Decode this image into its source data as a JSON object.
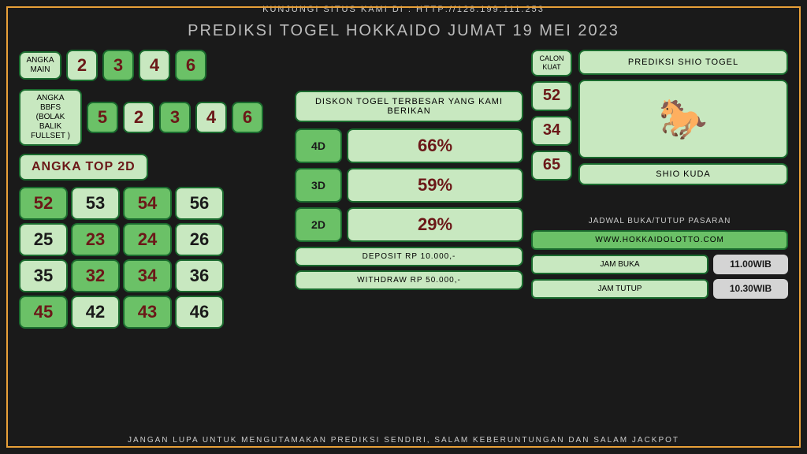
{
  "top_text": "KUNJUNGI SITUS KAMI DI : HTTP://128.199.111.253",
  "title": "PREDIKSI TOGEL HOKKAIDO JUMAT 19 MEI 2023",
  "bottom_text": "JANGAN LUPA UNTUK MENGUTAMAKAN PREDIKSI SENDIRI, SALAM KEBERUNTUNGAN DAN SALAM JACKPOT",
  "angka_main": {
    "label": "ANGKA MAIN",
    "nums": [
      "2",
      "3",
      "4",
      "6"
    ],
    "styles": [
      "l",
      "g",
      "l",
      "g"
    ]
  },
  "angka_bbfs": {
    "label": "ANGKA BBFS (BOLAK BALIK FULLSET )",
    "nums": [
      "5",
      "2",
      "3",
      "4",
      "6"
    ],
    "styles": [
      "g",
      "l",
      "g",
      "l",
      "g"
    ]
  },
  "top2d": {
    "title": "ANGKA TOP 2D",
    "cells": [
      {
        "v": "52",
        "s": "g"
      },
      {
        "v": "53",
        "s": "l"
      },
      {
        "v": "54",
        "s": "g"
      },
      {
        "v": "56",
        "s": "l"
      },
      {
        "v": "25",
        "s": "l"
      },
      {
        "v": "23",
        "s": "g"
      },
      {
        "v": "24",
        "s": "g"
      },
      {
        "v": "26",
        "s": "l"
      },
      {
        "v": "35",
        "s": "l"
      },
      {
        "v": "32",
        "s": "g"
      },
      {
        "v": "34",
        "s": "g"
      },
      {
        "v": "36",
        "s": "l"
      },
      {
        "v": "45",
        "s": "g"
      },
      {
        "v": "42",
        "s": "l"
      },
      {
        "v": "43",
        "s": "g"
      },
      {
        "v": "46",
        "s": "l"
      }
    ]
  },
  "diskon": {
    "title": "DISKON TOGEL TERBESAR YANG KAMI BERIKAN",
    "rows": [
      {
        "l": "4D",
        "v": "66%"
      },
      {
        "l": "3D",
        "v": "59%"
      },
      {
        "l": "2D",
        "v": "29%"
      }
    ],
    "deposit": "DEPOSIT RP 10.000,-",
    "withdraw": "WITHDRAW RP 50.000,-"
  },
  "calon": {
    "label": "CALON KUAT",
    "nums": [
      "52",
      "34",
      "65"
    ]
  },
  "shio": {
    "title": "PREDIKSI SHIO TOGEL",
    "name": "SHIO KUDA"
  },
  "sched": {
    "title": "JADWAL BUKA/TUTUP PASARAN",
    "web": "WWW.HOKKAIDOLOTTO.COM",
    "buka_l": "JAM BUKA",
    "buka_v": "11.00WIB",
    "tutup_l": "JAM TUTUP",
    "tutup_v": "10.30WIB"
  }
}
